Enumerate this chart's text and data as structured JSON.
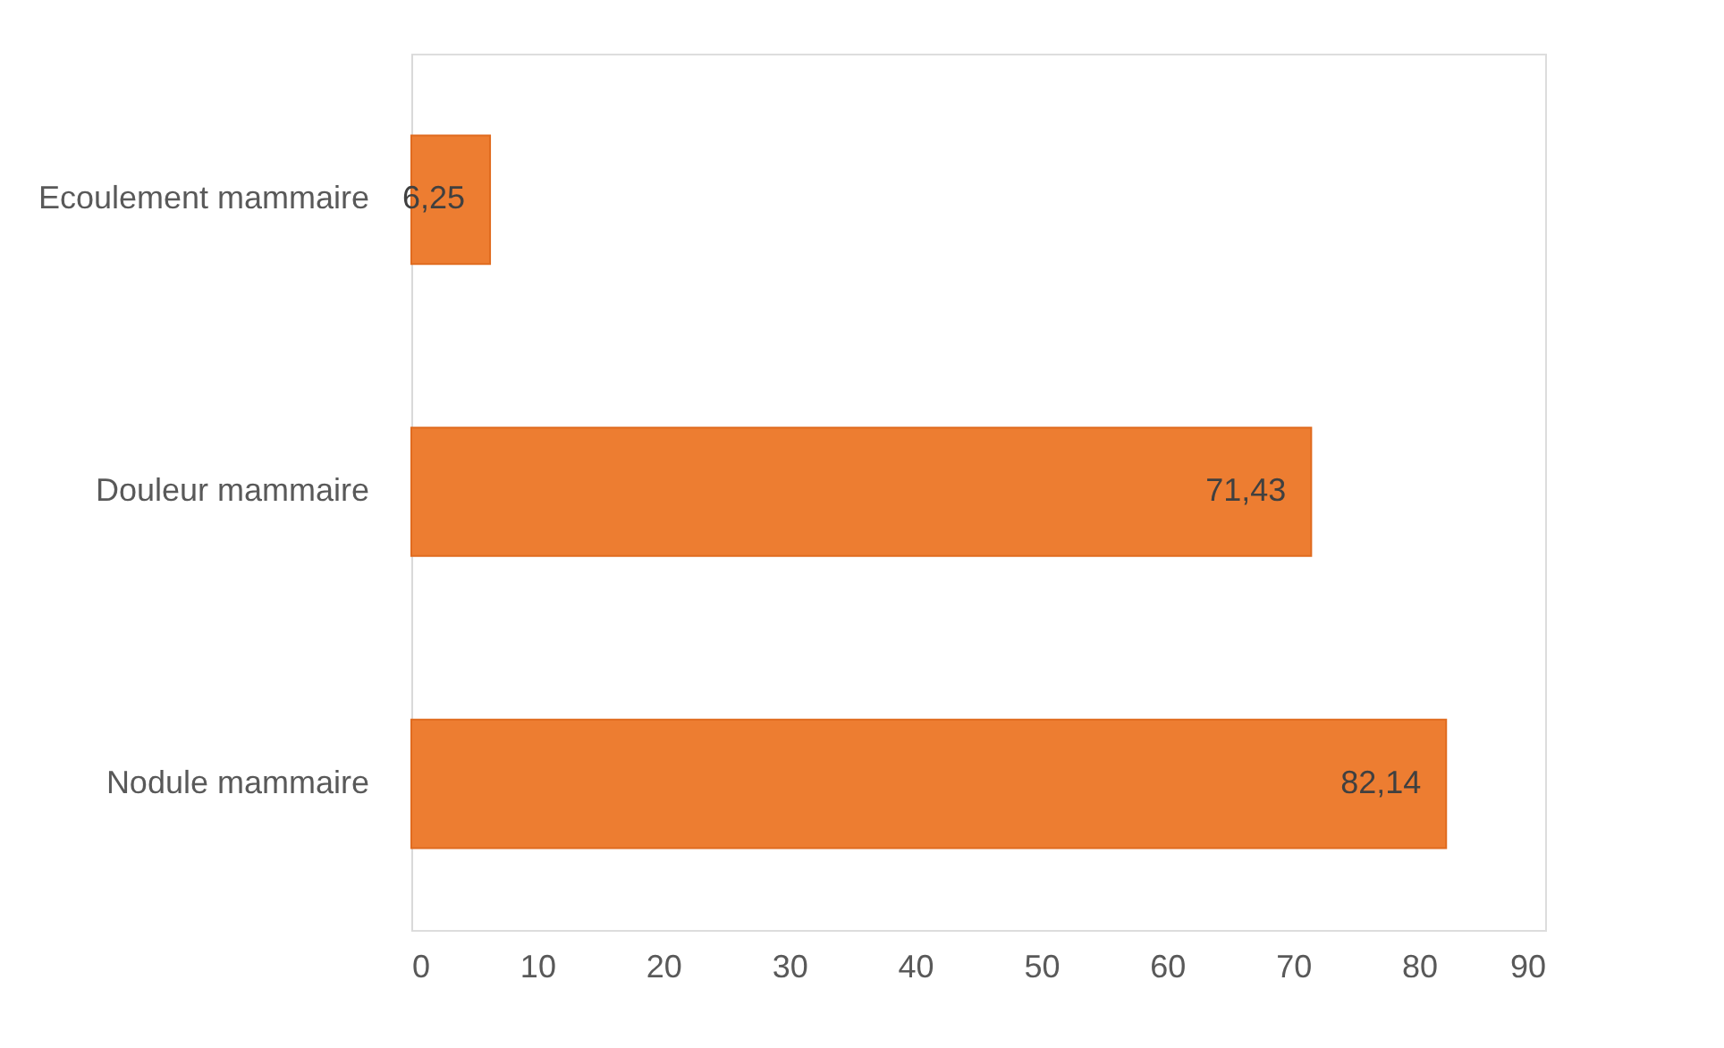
{
  "chart_data": {
    "type": "bar",
    "orientation": "horizontal",
    "categories": [
      "Ecoulement mammaire",
      "Douleur mammaire",
      "Nodule mammaire"
    ],
    "values": [
      6.25,
      71.43,
      82.14
    ],
    "value_labels": [
      "6,25",
      "71,43",
      "82,14"
    ],
    "color": "#ed7d31",
    "xlim": [
      0,
      90
    ],
    "xticks": [
      0,
      10,
      20,
      30,
      40,
      50,
      60,
      70,
      80,
      90
    ],
    "grid": false
  }
}
